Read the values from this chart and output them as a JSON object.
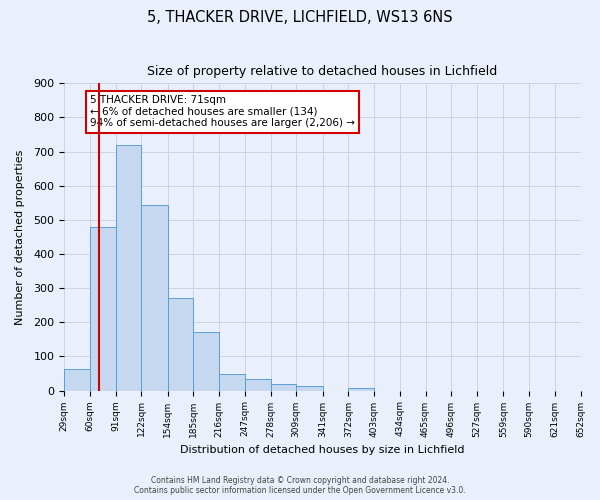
{
  "title": "5, THACKER DRIVE, LICHFIELD, WS13 6NS",
  "subtitle": "Size of property relative to detached houses in Lichfield",
  "xlabel": "Distribution of detached houses by size in Lichfield",
  "ylabel": "Number of detached properties",
  "bar_edges": [
    29,
    60,
    91,
    122,
    154,
    185,
    216,
    247,
    278,
    309,
    341,
    372,
    403,
    434,
    465,
    496,
    527,
    559,
    590,
    621,
    652
  ],
  "bar_heights": [
    62,
    480,
    720,
    543,
    270,
    172,
    48,
    35,
    18,
    13,
    0,
    8,
    0,
    0,
    0,
    0,
    0,
    0,
    0,
    0
  ],
  "tick_labels": [
    "29sqm",
    "60sqm",
    "91sqm",
    "122sqm",
    "154sqm",
    "185sqm",
    "216sqm",
    "247sqm",
    "278sqm",
    "309sqm",
    "341sqm",
    "372sqm",
    "403sqm",
    "434sqm",
    "465sqm",
    "496sqm",
    "527sqm",
    "559sqm",
    "590sqm",
    "621sqm",
    "652sqm"
  ],
  "bar_color": "#c5d8f0",
  "bar_edge_color": "#5a9fd4",
  "grid_color": "#c8d4e8",
  "background_color": "#eaf0fb",
  "property_line_x": 71,
  "property_line_color": "#cc0000",
  "annotation_text": "5 THACKER DRIVE: 71sqm\n← 6% of detached houses are smaller (134)\n94% of semi-detached houses are larger (2,206) →",
  "annotation_box_color": "#ffffff",
  "annotation_box_edge_color": "#cc0000",
  "ylim": [
    0,
    900
  ],
  "yticks": [
    0,
    100,
    200,
    300,
    400,
    500,
    600,
    700,
    800,
    900
  ],
  "footer_line1": "Contains HM Land Registry data © Crown copyright and database right 2024.",
  "footer_line2": "Contains public sector information licensed under the Open Government Licence v3.0."
}
